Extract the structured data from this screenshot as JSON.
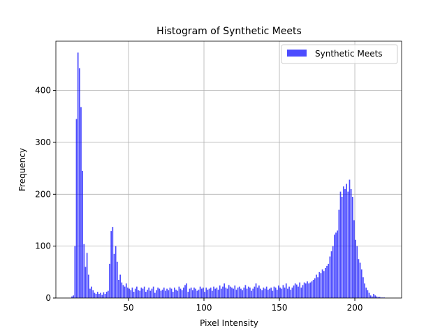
{
  "chart_data": {
    "type": "histogram",
    "title": "Histogram of Synthetic Meets",
    "x_label": "Pixel Intensity",
    "y_label": "Frequency",
    "series": [
      {
        "name": "Synthetic Meets",
        "color": "#0000ff"
      }
    ],
    "bins": [
      12,
      13,
      14,
      15,
      16,
      17,
      18,
      19,
      20,
      21,
      22,
      23,
      24,
      25,
      26,
      27,
      28,
      29,
      30,
      31,
      32,
      33,
      34,
      35,
      36,
      37,
      38,
      39,
      40,
      41,
      42,
      43,
      44,
      45,
      46,
      47,
      48,
      49,
      50,
      51,
      52,
      53,
      54,
      55,
      56,
      57,
      58,
      59,
      60,
      61,
      62,
      63,
      64,
      65,
      66,
      67,
      68,
      69,
      70,
      71,
      72,
      73,
      74,
      75,
      76,
      77,
      78,
      79,
      80,
      81,
      82,
      83,
      84,
      85,
      86,
      87,
      88,
      89,
      90,
      91,
      92,
      93,
      94,
      95,
      96,
      97,
      98,
      99,
      100,
      101,
      102,
      103,
      104,
      105,
      106,
      107,
      108,
      109,
      110,
      111,
      112,
      113,
      114,
      115,
      116,
      117,
      118,
      119,
      120,
      121,
      122,
      123,
      124,
      125,
      126,
      127,
      128,
      129,
      130,
      131,
      132,
      133,
      134,
      135,
      136,
      137,
      138,
      139,
      140,
      141,
      142,
      143,
      144,
      145,
      146,
      147,
      148,
      149,
      150,
      151,
      152,
      153,
      154,
      155,
      156,
      157,
      158,
      159,
      160,
      161,
      162,
      163,
      164,
      165,
      166,
      167,
      168,
      169,
      170,
      171,
      172,
      173,
      174,
      175,
      176,
      177,
      178,
      179,
      180,
      181,
      182,
      183,
      184,
      185,
      186,
      187,
      188,
      189,
      190,
      191,
      192,
      193,
      194,
      195,
      196,
      197,
      198,
      199,
      200,
      201,
      202,
      203,
      204,
      205,
      206,
      207,
      208,
      209,
      210,
      211,
      212,
      213,
      214,
      215,
      216,
      217,
      218,
      219,
      220,
      221,
      222
    ],
    "counts": [
      3,
      5,
      100,
      345,
      473,
      443,
      368,
      245,
      104,
      60,
      87,
      45,
      18,
      22,
      15,
      10,
      8,
      12,
      8,
      10,
      6,
      11,
      8,
      12,
      14,
      66,
      129,
      137,
      85,
      100,
      70,
      35,
      45,
      30,
      25,
      22,
      28,
      20,
      18,
      15,
      20,
      12,
      18,
      22,
      15,
      14,
      20,
      18,
      22,
      12,
      16,
      20,
      14,
      18,
      22,
      10,
      15,
      20,
      18,
      14,
      16,
      20,
      14,
      18,
      15,
      20,
      18,
      12,
      20,
      16,
      14,
      22,
      18,
      15,
      20,
      25,
      28,
      12,
      18,
      20,
      15,
      20,
      18,
      14,
      16,
      22,
      18,
      20,
      12,
      20,
      16,
      18,
      20,
      14,
      22,
      18,
      20,
      16,
      24,
      18,
      22,
      28,
      20,
      18,
      25,
      22,
      20,
      18,
      24,
      16,
      20,
      22,
      18,
      15,
      20,
      25,
      18,
      22,
      20,
      14,
      18,
      22,
      28,
      20,
      24,
      18,
      15,
      20,
      18,
      22,
      16,
      18,
      20,
      14,
      22,
      20,
      16,
      24,
      20,
      18,
      25,
      20,
      28,
      18,
      22,
      16,
      20,
      24,
      28,
      26,
      22,
      30,
      20,
      25,
      30,
      28,
      32,
      28,
      30,
      32,
      35,
      38,
      45,
      40,
      50,
      48,
      55,
      52,
      58,
      62,
      66,
      80,
      90,
      100,
      122,
      126,
      130,
      170,
      205,
      195,
      215,
      210,
      220,
      205,
      228,
      210,
      195,
      150,
      112,
      100,
      75,
      68,
      55,
      40,
      28,
      20,
      15,
      10,
      5,
      3,
      8,
      5,
      3,
      2,
      2,
      1,
      1,
      1,
      0,
      0
    ],
    "xlim": [
      1.85,
      231
    ],
    "ylim": [
      0,
      495
    ],
    "xticks": [
      50,
      100,
      150,
      200
    ],
    "yticks": [
      0,
      100,
      200,
      300,
      400
    ],
    "grid": true,
    "legend": "upper right"
  }
}
